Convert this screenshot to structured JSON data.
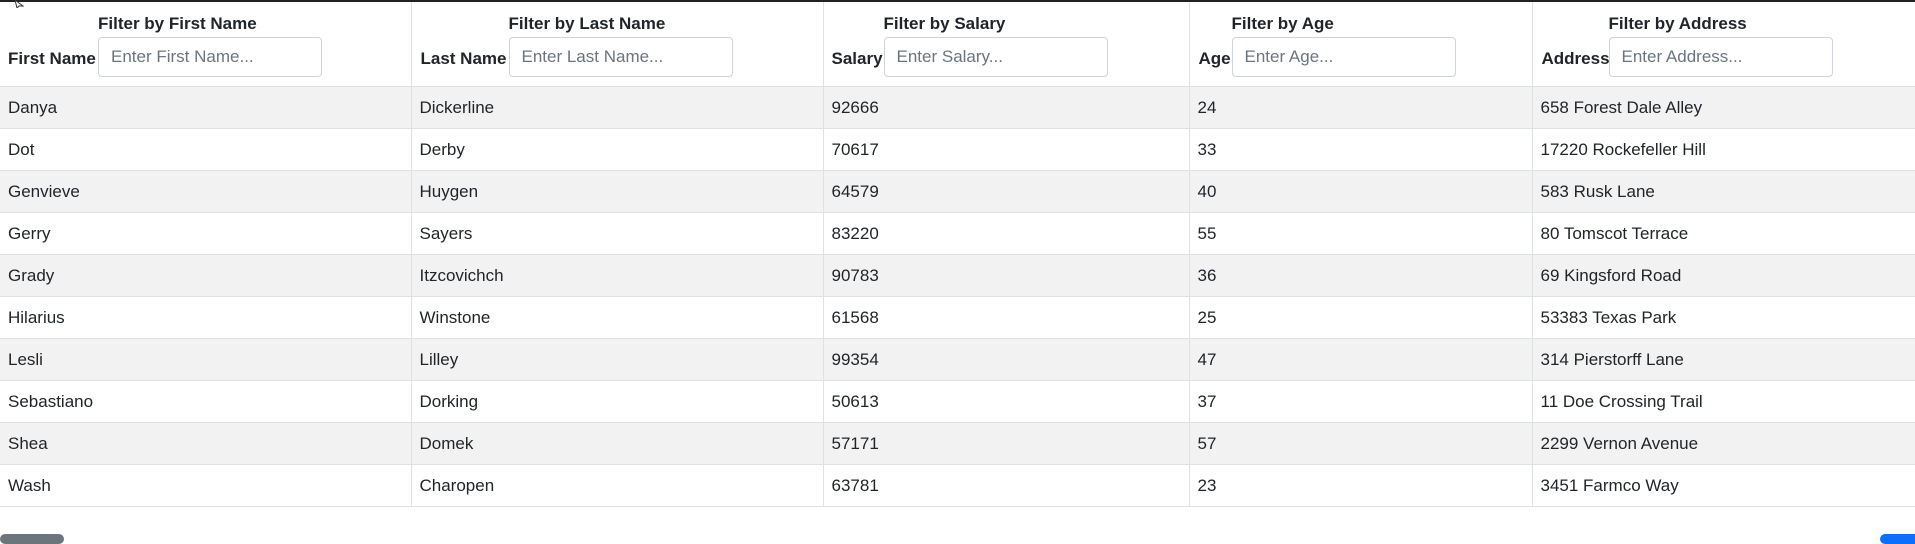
{
  "columns": [
    {
      "filter_title": "Filter by First Name",
      "label": "First Name",
      "placeholder": "Enter First Name..."
    },
    {
      "filter_title": "Filter by Last Name",
      "label": "Last Name",
      "placeholder": "Enter Last Name..."
    },
    {
      "filter_title": "Filter by Salary",
      "label": "Salary",
      "placeholder": "Enter Salary..."
    },
    {
      "filter_title": "Filter by Age",
      "label": "Age",
      "placeholder": "Enter Age..."
    },
    {
      "filter_title": "Filter by Address",
      "label": "Address",
      "placeholder": "Enter Address..."
    }
  ],
  "rows": [
    [
      "Danya",
      "Dickerline",
      "92666",
      "24",
      "658 Forest Dale Alley"
    ],
    [
      "Dot",
      "Derby",
      "70617",
      "33",
      "17220 Rockefeller Hill"
    ],
    [
      "Genvieve",
      "Huygen",
      "64579",
      "40",
      "583 Rusk Lane"
    ],
    [
      "Gerry",
      "Sayers",
      "83220",
      "55",
      "80 Tomscot Terrace"
    ],
    [
      "Grady",
      "Itzcovichch",
      "90783",
      "36",
      "69 Kingsford Road"
    ],
    [
      "Hilarius",
      "Winstone",
      "61568",
      "25",
      "53383 Texas Park"
    ],
    [
      "Lesli",
      "Lilley",
      "99354",
      "47",
      "314 Pierstorff Lane"
    ],
    [
      "Sebastiano",
      "Dorking",
      "50613",
      "37",
      "11 Doe Crossing Trail"
    ],
    [
      "Shea",
      "Domek",
      "57171",
      "57",
      "2299 Vernon Avenue"
    ],
    [
      "Wash",
      "Charopen",
      "63781",
      "23",
      "3451 Farmco Way"
    ]
  ]
}
